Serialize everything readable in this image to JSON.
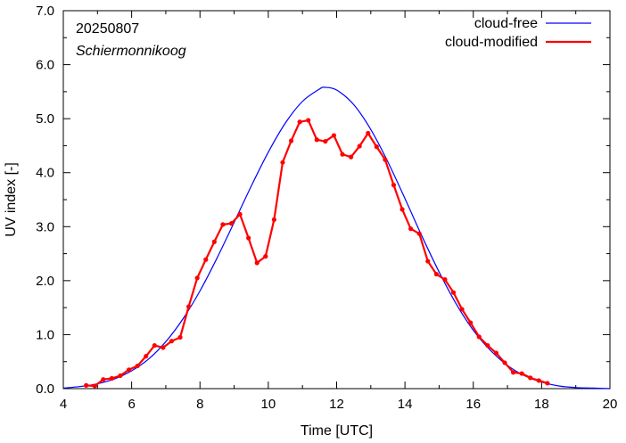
{
  "chart_data": {
    "type": "line",
    "title": "",
    "annotations": {
      "date": "20250807",
      "station": "Schiermonnikoog"
    },
    "xlabel": "Time  [UTC]",
    "ylabel": "UV index  [-]",
    "xlim": [
      4,
      20
    ],
    "ylim": [
      0,
      7
    ],
    "x_ticks": [
      "4",
      "6",
      "8",
      "10",
      "12",
      "14",
      "16",
      "18",
      "20"
    ],
    "y_ticks": [
      "0.0",
      "1.0",
      "2.0",
      "3.0",
      "4.0",
      "5.0",
      "6.0",
      "7.0"
    ],
    "grid": false,
    "legend_position": "top-right",
    "series": [
      {
        "name": "cloud-free",
        "color": "#0000ff",
        "style": "line",
        "peak_x": 11.65,
        "peak_y": 5.58,
        "x": [
          4.0,
          4.5,
          5.0,
          5.5,
          6.0,
          6.5,
          7.0,
          7.5,
          8.0,
          8.5,
          9.0,
          9.5,
          10.0,
          10.5,
          11.0,
          11.5,
          11.65,
          12.0,
          12.5,
          13.0,
          13.5,
          14.0,
          14.5,
          15.0,
          15.5,
          16.0,
          16.5,
          17.0,
          17.5,
          18.0,
          18.5,
          19.0,
          19.5,
          20.0
        ],
        "y": [
          0.01,
          0.04,
          0.09,
          0.18,
          0.33,
          0.55,
          0.87,
          1.29,
          1.81,
          2.42,
          3.08,
          3.75,
          4.38,
          4.92,
          5.32,
          5.55,
          5.58,
          5.53,
          5.26,
          4.8,
          4.2,
          3.52,
          2.82,
          2.16,
          1.57,
          1.08,
          0.71,
          0.43,
          0.24,
          0.12,
          0.05,
          0.02,
          0.01,
          0.0
        ]
      },
      {
        "name": "cloud-modified",
        "color": "#ff0000",
        "style": "line-points",
        "x": [
          4.67,
          4.92,
          5.17,
          5.42,
          5.67,
          5.92,
          6.17,
          6.42,
          6.67,
          6.92,
          7.17,
          7.42,
          7.67,
          7.92,
          8.17,
          8.42,
          8.67,
          8.92,
          9.17,
          9.42,
          9.67,
          9.92,
          10.17,
          10.42,
          10.67,
          10.92,
          11.17,
          11.42,
          11.67,
          11.92,
          12.17,
          12.42,
          12.67,
          12.92,
          13.17,
          13.42,
          13.67,
          13.92,
          14.17,
          14.42,
          14.67,
          14.92,
          15.17,
          15.42,
          15.67,
          15.92,
          16.17,
          16.42,
          16.67,
          16.92,
          17.17,
          17.42,
          17.67,
          17.92,
          18.17
        ],
        "y": [
          0.06,
          0.05,
          0.17,
          0.19,
          0.24,
          0.35,
          0.42,
          0.6,
          0.8,
          0.76,
          0.88,
          0.95,
          1.52,
          2.05,
          2.39,
          2.72,
          3.04,
          3.06,
          3.23,
          2.79,
          2.33,
          2.45,
          3.13,
          4.19,
          4.59,
          4.94,
          4.97,
          4.61,
          4.58,
          4.69,
          4.34,
          4.29,
          4.49,
          4.73,
          4.48,
          4.24,
          3.77,
          3.32,
          2.96,
          2.87,
          2.36,
          2.12,
          2.02,
          1.78,
          1.47,
          1.22,
          0.96,
          0.8,
          0.66,
          0.48,
          0.3,
          0.28,
          0.2,
          0.15,
          0.1
        ]
      }
    ]
  }
}
